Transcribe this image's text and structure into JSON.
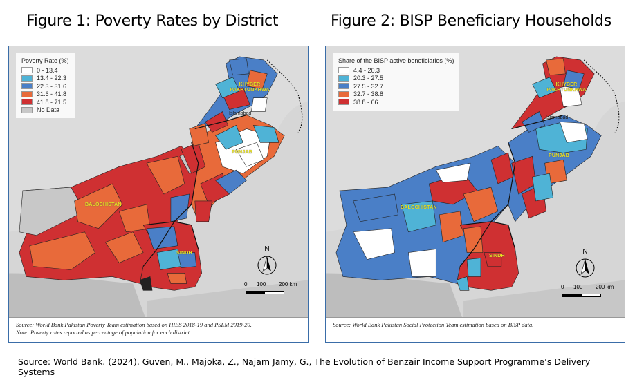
{
  "figure1": {
    "title": "Figure 1: Poverty Rates by District",
    "legend": {
      "title": "Poverty Rate (%)",
      "items": [
        {
          "label": "0 - 13.4",
          "color": "#ffffff"
        },
        {
          "label": "13.4 - 22.3",
          "color": "#4fb3d6"
        },
        {
          "label": "22.3 - 31.6",
          "color": "#4a7fc7"
        },
        {
          "label": "31.6 - 41.8",
          "color": "#e86a3a"
        },
        {
          "label": "41.8 - 71.5",
          "color": "#cf3032"
        },
        {
          "label": "No Data",
          "color": "#c8c8c8"
        }
      ]
    },
    "labels": {
      "kp": "KHYBER PAKHTUNKHWA",
      "islamabad": "Islamabad",
      "punjab": "PUNJAB",
      "balochistan": "BALOCHISTAN",
      "sindh": "SINDH"
    },
    "north": "N",
    "scale": {
      "t0": "0",
      "t1": "100",
      "t2": "200 km"
    },
    "source_line1": "Source: World Bank Pakistan Poverty Team estimation based on HIES 2018-19 and PSLM 2019-20.",
    "source_line2": "Note: Poverty rates reported as percentage of population for each district."
  },
  "figure2": {
    "title": "Figure 2: BISP Beneficiary Households",
    "legend": {
      "title": "Share of the BISP active beneficiaries (%)",
      "items": [
        {
          "label": "4.4 - 20.3",
          "color": "#ffffff"
        },
        {
          "label": "20.3 - 27.5",
          "color": "#4fb3d6"
        },
        {
          "label": "27.5 - 32.7",
          "color": "#4a7fc7"
        },
        {
          "label": "32.7 - 38.8",
          "color": "#e86a3a"
        },
        {
          "label": "38.8 - 66",
          "color": "#cf3032"
        }
      ]
    },
    "labels": {
      "kp": "KHYBER PAKHTUNKHWA",
      "islamabad": "Islamabad",
      "punjab": "PUNJAB",
      "balochistan": "BALOCHISTAN",
      "sindh": "SINDH"
    },
    "north": "N",
    "scale": {
      "t0": "0",
      "t1": "100",
      "t2": "200 km"
    },
    "source_line1": "Source: World Bank Pakistan Social Protection Team estimation based on BISP data."
  },
  "source": "Source: World Bank. (2024). Guven, M., Majoka, Z., Najam Jamy, G., The Evolution of Benzair Income Support Programme’s Delivery Systems",
  "colors": {
    "white": "#ffffff",
    "light_blue": "#4fb3d6",
    "blue": "#4a7fc7",
    "orange": "#e86a3a",
    "red": "#cf3032",
    "no_data": "#c8c8c8",
    "frame": "#3a6da8"
  }
}
